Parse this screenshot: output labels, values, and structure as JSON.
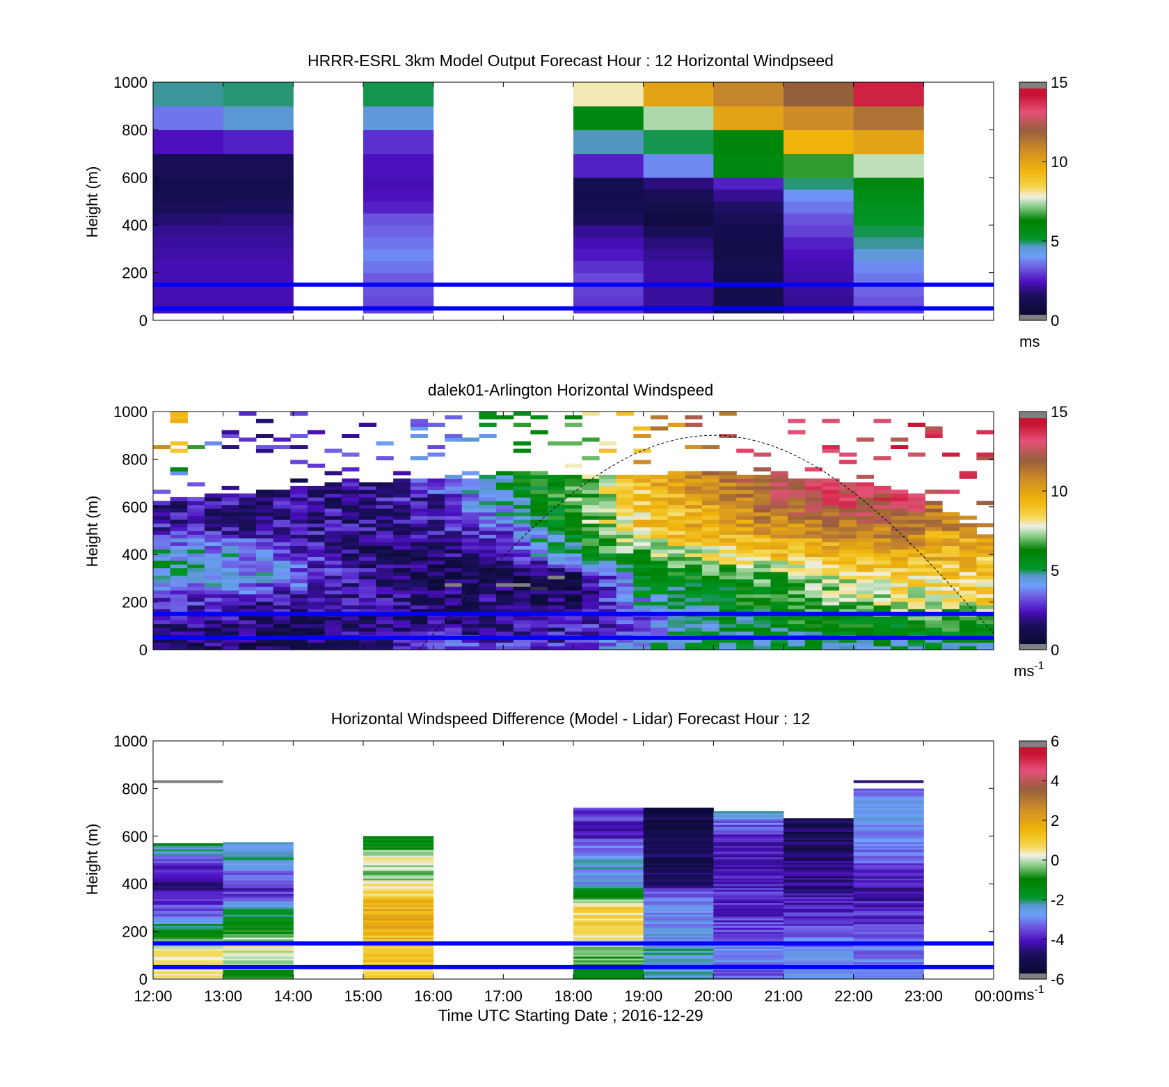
{
  "figure": {
    "xlabel": "Time UTC  Starting Date ; 2016-12-29",
    "x_ticks": [
      "12:00",
      "13:00",
      "14:00",
      "15:00",
      "16:00",
      "17:00",
      "18:00",
      "19:00",
      "20:00",
      "21:00",
      "22:00",
      "23:00",
      "00:00"
    ],
    "y_ticks": [
      "0",
      "200",
      "400",
      "600",
      "800",
      "1000"
    ],
    "reference_lines": {
      "heights_m": [
        150,
        50
      ],
      "color": "#0000ff"
    }
  },
  "chart_data": [
    {
      "type": "heatmap",
      "title": "HRRR-ESRL 3km Model Output   Forecast Hour : 12 Horizontal Windpseed",
      "ylabel": "Height (m)",
      "xlim": [
        0,
        12
      ],
      "ylim": [
        0,
        1000
      ],
      "colorbar": {
        "range": [
          0,
          15
        ],
        "ticks": [
          "0",
          "5",
          "10",
          "15"
        ],
        "unit_label": "ms",
        "unit_sup": ""
      },
      "x_hours": [
        0,
        1,
        2,
        3,
        4,
        5,
        6,
        7,
        8,
        9,
        10,
        11
      ],
      "height_levels_m": [
        30,
        65,
        100,
        150,
        200,
        250,
        300,
        350,
        400,
        450,
        500,
        550,
        600,
        700,
        800,
        900,
        1000
      ],
      "values_ms": [
        [
          2.3,
          2.3,
          null,
          3.0,
          null,
          null,
          2.8,
          2.0,
          1.2,
          2.0,
          3.0
        ],
        [
          2.3,
          2.3,
          null,
          3.1,
          null,
          null,
          2.9,
          2.1,
          1.1,
          2.0,
          3.2
        ],
        [
          2.3,
          2.3,
          null,
          3.2,
          null,
          null,
          3.0,
          2.1,
          1.0,
          2.1,
          3.4
        ],
        [
          2.3,
          2.3,
          null,
          3.3,
          null,
          null,
          3.1,
          2.2,
          1.1,
          2.2,
          3.6
        ],
        [
          2.3,
          2.3,
          null,
          3.6,
          null,
          null,
          2.8,
          2.2,
          1.2,
          2.3,
          3.8
        ],
        [
          2.2,
          2.2,
          null,
          3.8,
          null,
          null,
          2.5,
          2.0,
          1.0,
          2.4,
          4.5
        ],
        [
          2.1,
          2.1,
          null,
          3.6,
          null,
          null,
          2.3,
          1.8,
          1.0,
          2.6,
          4.8
        ],
        [
          2.0,
          2.0,
          null,
          3.4,
          null,
          null,
          2.0,
          1.4,
          1.1,
          3.0,
          5.0
        ],
        [
          1.7,
          1.8,
          null,
          3.2,
          null,
          null,
          1.5,
          0.8,
          1.3,
          3.2,
          5.2
        ],
        [
          1.4,
          1.5,
          null,
          2.6,
          null,
          null,
          1.2,
          1.0,
          1.6,
          3.6,
          5.4
        ],
        [
          1.2,
          1.2,
          null,
          2.4,
          null,
          null,
          1.1,
          1.3,
          2.0,
          3.9,
          5.6
        ],
        [
          1.1,
          1.1,
          null,
          2.3,
          null,
          null,
          1.2,
          1.8,
          2.6,
          4.9,
          5.9
        ],
        [
          1.3,
          1.3,
          null,
          2.4,
          null,
          null,
          2.6,
          3.8,
          5.8,
          6.6,
          7.5
        ],
        [
          2.4,
          2.6,
          null,
          2.8,
          null,
          null,
          4.7,
          5.0,
          6.0,
          9.5,
          10.0
        ],
        [
          3.6,
          4.6,
          null,
          4.5,
          null,
          null,
          5.8,
          7.4,
          10.0,
          10.8,
          11.5
        ],
        [
          4.8,
          4.9,
          null,
          5.0,
          null,
          null,
          8.0,
          10.0,
          11.0,
          12.0,
          14.0
        ]
      ]
    },
    {
      "type": "heatmap",
      "title": "dalek01-Arlington  Horizontal Windspeed",
      "ylabel": "Height (m)",
      "xlim": [
        0,
        12
      ],
      "ylim": [
        0,
        1000
      ],
      "colorbar": {
        "range": [
          0,
          15
        ],
        "ticks": [
          "0",
          "5",
          "10",
          "15"
        ],
        "unit_label": "ms",
        "unit_sup": "-1"
      },
      "reference_curve": {
        "type": "solar elevation",
        "peak_time_h": 8.0,
        "peak_height_m": 900,
        "start_h": 3.8
      },
      "x_hours": [
        0,
        1,
        2,
        3,
        4,
        5,
        6,
        7,
        8,
        9,
        10,
        11,
        12
      ],
      "height_levels_m": [
        0,
        100,
        200,
        300,
        400,
        500,
        600,
        700,
        800
      ],
      "values_ms": [
        [
          2.0,
          1.5,
          1.6,
          2.2,
          3.1,
          2.9,
          2.6,
          4.5,
          5.0,
          5.0,
          5.1,
          5.0,
          5.0
        ],
        [
          2.0,
          1.8,
          1.5,
          1.7,
          1.8,
          2.0,
          2.2,
          3.4,
          5.0,
          5.6,
          6.0,
          6.2,
          6.4
        ],
        [
          3.0,
          2.6,
          2.2,
          2.0,
          1.8,
          1.6,
          1.5,
          4.2,
          5.6,
          6.4,
          7.2,
          8.0,
          8.4
        ],
        [
          5.0,
          4.6,
          3.6,
          2.1,
          1.2,
          1.0,
          1.2,
          5.2,
          6.0,
          7.0,
          8.0,
          8.6,
          8.8
        ],
        [
          4.8,
          4.2,
          3.0,
          1.6,
          1.6,
          2.8,
          5.2,
          7.0,
          8.0,
          9.2,
          9.6,
          9.8,
          9.0
        ],
        [
          2.4,
          2.2,
          2.1,
          2.0,
          2.2,
          3.2,
          6.2,
          9.0,
          9.8,
          10.4,
          11.0,
          11.2,
          null
        ],
        [
          2.2,
          2.1,
          2.0,
          2.1,
          2.4,
          4.6,
          6.5,
          8.6,
          10.0,
          12.0,
          13.0,
          12.8,
          null
        ],
        [
          2.6,
          2.0,
          1.8,
          2.0,
          3.0,
          5.0,
          6.8,
          9.4,
          10.8,
          12.6,
          13.2,
          13.4,
          null
        ],
        [
          13.0,
          3.0,
          2.5,
          3.0,
          4.0,
          5.5,
          7.0,
          10.0,
          12.0,
          13.0,
          13.5,
          13.5,
          null
        ]
      ]
    },
    {
      "type": "heatmap",
      "title": "Horizontal Windspeed Difference (Model - Lidar) Forecast Hour : 12",
      "ylabel": "Height (m)",
      "xlim": [
        0,
        12
      ],
      "ylim": [
        0,
        1000
      ],
      "colorbar": {
        "range": [
          -6,
          6
        ],
        "ticks": [
          "-6",
          "-4",
          "-2",
          "0",
          "2",
          "4",
          "6"
        ],
        "unit_label": "ms",
        "unit_sup": "-1"
      },
      "x_hours": [
        0,
        1,
        3,
        6,
        7,
        8,
        9,
        10
      ],
      "columns": [
        {
          "start_h": 0,
          "top_m": 570,
          "profile": [
            [
              0,
              0.5
            ],
            [
              120,
              0.6
            ],
            [
              180,
              -1.0
            ],
            [
              260,
              -3.0
            ],
            [
              360,
              -4.2
            ],
            [
              440,
              -4.4
            ],
            [
              500,
              -3.2
            ],
            [
              560,
              -1.5
            ]
          ]
        },
        {
          "start_h": 1,
          "top_m": 575,
          "profile": [
            [
              0,
              -1.0
            ],
            [
              120,
              0.3
            ],
            [
              200,
              -0.8
            ],
            [
              300,
              -2.5
            ],
            [
              380,
              -4.0
            ],
            [
              460,
              -3.0
            ],
            [
              520,
              -2.0
            ],
            [
              575,
              -2.5
            ]
          ]
        },
        {
          "start_h": 3,
          "top_m": 600,
          "profile": [
            [
              0,
              1.0
            ],
            [
              150,
              1.2
            ],
            [
              250,
              2.0
            ],
            [
              350,
              1.0
            ],
            [
              450,
              -0.5
            ],
            [
              500,
              0.8
            ],
            [
              560,
              -1.5
            ],
            [
              600,
              -1.6
            ]
          ]
        },
        {
          "start_h": 6,
          "top_m": 720,
          "profile": [
            [
              0,
              -1.5
            ],
            [
              100,
              -0.5
            ],
            [
              180,
              0.5
            ],
            [
              300,
              0.8
            ],
            [
              400,
              -2.8
            ],
            [
              500,
              -2.5
            ],
            [
              600,
              -4.0
            ],
            [
              720,
              -3.5
            ]
          ]
        },
        {
          "start_h": 7,
          "top_m": 720,
          "profile": [
            [
              0,
              -2.4
            ],
            [
              100,
              -2.4
            ],
            [
              200,
              -2.8
            ],
            [
              350,
              -3.0
            ],
            [
              400,
              -4.8
            ],
            [
              600,
              -5.2
            ],
            [
              720,
              -5.0
            ]
          ]
        },
        {
          "start_h": 8,
          "top_m": 705,
          "profile": [
            [
              0,
              -3.4
            ],
            [
              100,
              -2.6
            ],
            [
              200,
              -3.5
            ],
            [
              300,
              -4.0
            ],
            [
              400,
              -3.8
            ],
            [
              500,
              -4.2
            ],
            [
              600,
              -3.9
            ],
            [
              705,
              -2.5
            ]
          ]
        },
        {
          "start_h": 9,
          "top_m": 675,
          "profile": [
            [
              0,
              -2.8
            ],
            [
              100,
              -2.8
            ],
            [
              200,
              -3.3
            ],
            [
              300,
              -4.0
            ],
            [
              400,
              -4.4
            ],
            [
              500,
              -4.6
            ],
            [
              600,
              -5.0
            ],
            [
              675,
              -4.9
            ]
          ]
        },
        {
          "start_h": 10,
          "top_m": 800,
          "profile": [
            [
              0,
              -3.0
            ],
            [
              100,
              -3.0
            ],
            [
              200,
              -3.6
            ],
            [
              300,
              -4.0
            ],
            [
              400,
              -4.2
            ],
            [
              500,
              -3.4
            ],
            [
              600,
              -2.8
            ],
            [
              700,
              -2.5
            ],
            [
              800,
              -3.0
            ]
          ]
        }
      ]
    }
  ]
}
